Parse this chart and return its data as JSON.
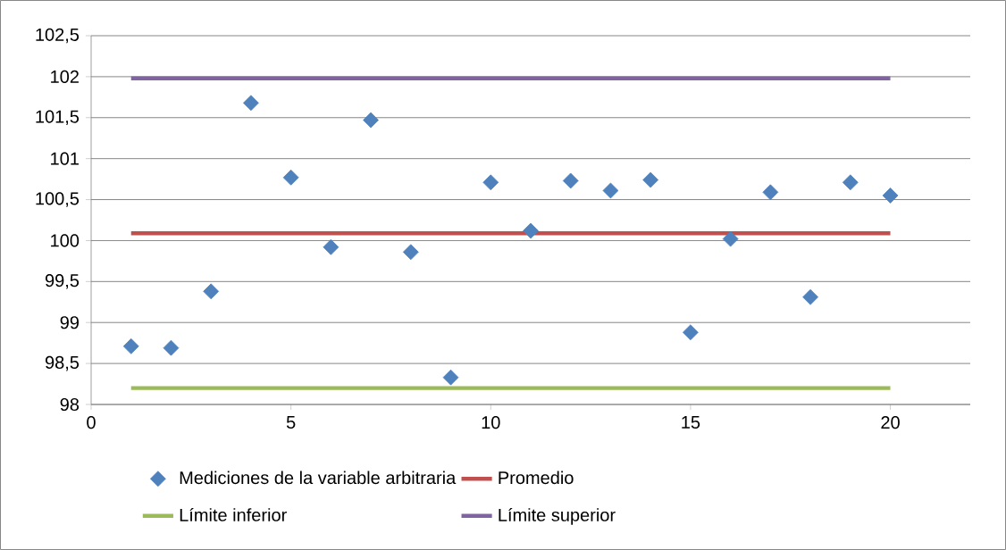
{
  "chart_data": {
    "type": "scatter",
    "series": [
      {
        "name": "Mediciones de la variable arbitraria",
        "color": "#4f81bd",
        "marker": "diamond",
        "x": [
          1,
          2,
          3,
          4,
          5,
          6,
          7,
          8,
          9,
          10,
          11,
          12,
          13,
          14,
          15,
          16,
          17,
          18,
          19,
          20
        ],
        "values": [
          98.71,
          98.69,
          99.38,
          101.68,
          100.77,
          99.92,
          101.47,
          99.86,
          98.33,
          100.71,
          100.12,
          100.73,
          100.61,
          100.74,
          98.88,
          100.02,
          100.59,
          99.31,
          100.71,
          100.55
        ]
      },
      {
        "name": "Promedio",
        "type": "line",
        "color": "#c0504d",
        "marker": "none",
        "line_style": "solid",
        "x": [
          1,
          20
        ],
        "values": [
          100.09,
          100.09
        ]
      },
      {
        "name": "Límite inferior",
        "type": "line",
        "color": "#9bbb59",
        "marker": "none",
        "line_style": "solid",
        "x": [
          1,
          20
        ],
        "values": [
          98.2,
          98.2
        ]
      },
      {
        "name": "Límite superior",
        "type": "line",
        "color": "#8064a2",
        "marker": "none",
        "line_style": "solid",
        "x": [
          1,
          20
        ],
        "values": [
          101.98,
          101.98
        ]
      }
    ],
    "xlim": [
      0,
      22
    ],
    "xticks": [
      0,
      5,
      10,
      15,
      20
    ],
    "ylim": [
      98,
      102.5
    ],
    "yticks": [
      98,
      {
        "value": 98.5,
        "label": "98,5"
      },
      99,
      {
        "value": 99.5,
        "label": "99,5"
      },
      100,
      {
        "value": 100.5,
        "label": "100,5"
      },
      101,
      {
        "value": 101.5,
        "label": "101,5"
      },
      102,
      {
        "value": 102.5,
        "label": "102,5"
      }
    ],
    "grid": "y",
    "legend": "bottom"
  }
}
